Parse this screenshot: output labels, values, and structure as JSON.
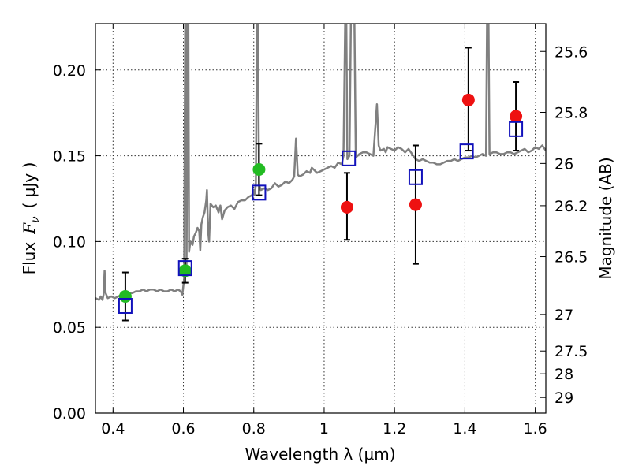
{
  "chart_data": {
    "type": "scatter",
    "title": "",
    "xlabel": "Wavelength  λ (μm)",
    "ylabel": "Flux  F_ν  ( μJy )",
    "ylabel_parts": {
      "prefix": "Flux",
      "symbol": "F",
      "subscript": "ν",
      "units": "( μJy )"
    },
    "y2label": "Magnitude (AB)",
    "xlim": [
      0.35,
      1.63
    ],
    "ylim": [
      0.0,
      0.227
    ],
    "grid": true,
    "xticks": [
      {
        "value": 0.4,
        "label": "0.4"
      },
      {
        "value": 0.6,
        "label": "0.6"
      },
      {
        "value": 0.8,
        "label": "0.8"
      },
      {
        "value": 1.0,
        "label": "1"
      },
      {
        "value": 1.2,
        "label": "1.2"
      },
      {
        "value": 1.4,
        "label": "1.4"
      },
      {
        "value": 1.6,
        "label": "1.6"
      }
    ],
    "yticks": [
      {
        "value": 0.0,
        "label": "0.00"
      },
      {
        "value": 0.05,
        "label": "0.05"
      },
      {
        "value": 0.1,
        "label": "0.10"
      },
      {
        "value": 0.15,
        "label": "0.15"
      },
      {
        "value": 0.2,
        "label": "0.20"
      }
    ],
    "y2ticks": [
      {
        "flux": 0.2108,
        "label": "25.6"
      },
      {
        "flux": 0.1753,
        "label": "25.8"
      },
      {
        "flux": 0.1455,
        "label": "26"
      },
      {
        "flux": 0.1209,
        "label": "26.2"
      },
      {
        "flux": 0.0912,
        "label": "26.5"
      },
      {
        "flux": 0.0575,
        "label": "27"
      },
      {
        "flux": 0.0362,
        "label": "27.5"
      },
      {
        "flux": 0.0229,
        "label": "28"
      },
      {
        "flux": 0.0091,
        "label": "29"
      }
    ],
    "spectrum": {
      "color": "#808080",
      "points": [
        [
          0.35,
          0.067
        ],
        [
          0.36,
          0.066
        ],
        [
          0.365,
          0.068
        ],
        [
          0.37,
          0.066
        ],
        [
          0.373,
          0.069
        ],
        [
          0.376,
          0.083
        ],
        [
          0.379,
          0.07
        ],
        [
          0.385,
          0.067
        ],
        [
          0.395,
          0.068
        ],
        [
          0.405,
          0.067
        ],
        [
          0.415,
          0.068
        ],
        [
          0.425,
          0.069
        ],
        [
          0.435,
          0.069
        ],
        [
          0.445,
          0.07
        ],
        [
          0.455,
          0.07
        ],
        [
          0.465,
          0.071
        ],
        [
          0.475,
          0.071
        ],
        [
          0.485,
          0.072
        ],
        [
          0.495,
          0.071
        ],
        [
          0.505,
          0.072
        ],
        [
          0.515,
          0.072
        ],
        [
          0.525,
          0.071
        ],
        [
          0.535,
          0.072
        ],
        [
          0.545,
          0.071
        ],
        [
          0.555,
          0.071
        ],
        [
          0.565,
          0.072
        ],
        [
          0.575,
          0.071
        ],
        [
          0.585,
          0.072
        ],
        [
          0.592,
          0.071
        ],
        [
          0.597,
          0.069
        ],
        [
          0.602,
          0.078
        ],
        [
          0.605,
          0.23
        ],
        [
          0.607,
          0.23
        ],
        [
          0.609,
          0.085
        ],
        [
          0.612,
          0.23
        ],
        [
          0.614,
          0.23
        ],
        [
          0.616,
          0.094
        ],
        [
          0.62,
          0.1
        ],
        [
          0.626,
          0.098
        ],
        [
          0.63,
          0.103
        ],
        [
          0.635,
          0.105
        ],
        [
          0.64,
          0.108
        ],
        [
          0.645,
          0.106
        ],
        [
          0.648,
          0.095
        ],
        [
          0.651,
          0.11
        ],
        [
          0.655,
          0.114
        ],
        [
          0.66,
          0.117
        ],
        [
          0.665,
          0.124
        ],
        [
          0.667,
          0.13
        ],
        [
          0.67,
          0.106
        ],
        [
          0.673,
          0.1
        ],
        [
          0.677,
          0.122
        ],
        [
          0.685,
          0.12
        ],
        [
          0.692,
          0.121
        ],
        [
          0.7,
          0.117
        ],
        [
          0.705,
          0.121
        ],
        [
          0.71,
          0.113
        ],
        [
          0.717,
          0.118
        ],
        [
          0.725,
          0.12
        ],
        [
          0.735,
          0.121
        ],
        [
          0.745,
          0.119
        ],
        [
          0.755,
          0.123
        ],
        [
          0.765,
          0.124
        ],
        [
          0.775,
          0.124
        ],
        [
          0.785,
          0.126
        ],
        [
          0.795,
          0.127
        ],
        [
          0.8,
          0.13
        ],
        [
          0.803,
          0.127
        ],
        [
          0.806,
          0.134
        ],
        [
          0.809,
          0.225
        ],
        [
          0.812,
          0.23
        ],
        [
          0.815,
          0.133
        ],
        [
          0.82,
          0.13
        ],
        [
          0.83,
          0.131
        ],
        [
          0.84,
          0.13
        ],
        [
          0.85,
          0.131
        ],
        [
          0.86,
          0.134
        ],
        [
          0.87,
          0.132
        ],
        [
          0.88,
          0.133
        ],
        [
          0.89,
          0.135
        ],
        [
          0.9,
          0.134
        ],
        [
          0.91,
          0.136
        ],
        [
          0.915,
          0.138
        ],
        [
          0.92,
          0.16
        ],
        [
          0.925,
          0.139
        ],
        [
          0.93,
          0.138
        ],
        [
          0.94,
          0.139
        ],
        [
          0.95,
          0.141
        ],
        [
          0.96,
          0.14
        ],
        [
          0.965,
          0.143
        ],
        [
          0.97,
          0.142
        ],
        [
          0.98,
          0.14
        ],
        [
          0.99,
          0.141
        ],
        [
          1.0,
          0.142
        ],
        [
          1.01,
          0.143
        ],
        [
          1.02,
          0.144
        ],
        [
          1.03,
          0.143
        ],
        [
          1.04,
          0.146
        ],
        [
          1.05,
          0.145
        ],
        [
          1.055,
          0.15
        ],
        [
          1.06,
          0.23
        ],
        [
          1.063,
          0.23
        ],
        [
          1.066,
          0.148
        ],
        [
          1.072,
          0.15
        ],
        [
          1.076,
          0.23
        ],
        [
          1.082,
          0.23
        ],
        [
          1.086,
          0.23
        ],
        [
          1.09,
          0.149
        ],
        [
          1.1,
          0.151
        ],
        [
          1.11,
          0.152
        ],
        [
          1.12,
          0.152
        ],
        [
          1.13,
          0.151
        ],
        [
          1.14,
          0.15
        ],
        [
          1.15,
          0.18
        ],
        [
          1.155,
          0.156
        ],
        [
          1.16,
          0.153
        ],
        [
          1.17,
          0.154
        ],
        [
          1.175,
          0.152
        ],
        [
          1.18,
          0.155
        ],
        [
          1.19,
          0.154
        ],
        [
          1.2,
          0.153
        ],
        [
          1.21,
          0.155
        ],
        [
          1.22,
          0.154
        ],
        [
          1.23,
          0.152
        ],
        [
          1.24,
          0.154
        ],
        [
          1.25,
          0.151
        ],
        [
          1.26,
          0.148
        ],
        [
          1.27,
          0.147
        ],
        [
          1.28,
          0.148
        ],
        [
          1.29,
          0.147
        ],
        [
          1.3,
          0.146
        ],
        [
          1.31,
          0.146
        ],
        [
          1.32,
          0.145
        ],
        [
          1.33,
          0.145
        ],
        [
          1.34,
          0.146
        ],
        [
          1.35,
          0.147
        ],
        [
          1.36,
          0.147
        ],
        [
          1.37,
          0.148
        ],
        [
          1.38,
          0.147
        ],
        [
          1.39,
          0.148
        ],
        [
          1.4,
          0.149
        ],
        [
          1.41,
          0.149
        ],
        [
          1.42,
          0.15
        ],
        [
          1.43,
          0.149
        ],
        [
          1.44,
          0.15
        ],
        [
          1.45,
          0.151
        ],
        [
          1.46,
          0.15
        ],
        [
          1.463,
          0.23
        ],
        [
          1.467,
          0.23
        ],
        [
          1.47,
          0.151
        ],
        [
          1.48,
          0.152
        ],
        [
          1.49,
          0.152
        ],
        [
          1.5,
          0.151
        ],
        [
          1.51,
          0.151
        ],
        [
          1.52,
          0.152
        ],
        [
          1.53,
          0.152
        ],
        [
          1.54,
          0.151
        ],
        [
          1.55,
          0.152
        ],
        [
          1.56,
          0.153
        ],
        [
          1.57,
          0.154
        ],
        [
          1.58,
          0.152
        ],
        [
          1.59,
          0.153
        ],
        [
          1.6,
          0.155
        ],
        [
          1.61,
          0.154
        ],
        [
          1.62,
          0.156
        ],
        [
          1.63,
          0.153
        ]
      ]
    },
    "series": [
      {
        "marker": "circle",
        "color": "#22bb22",
        "points": [
          {
            "x": 0.435,
            "y": 0.068,
            "err": [
              0.054,
              0.082
            ]
          },
          {
            "x": 0.605,
            "y": 0.083,
            "err": [
              0.076,
              0.09
            ]
          },
          {
            "x": 0.815,
            "y": 0.142,
            "err": [
              0.127,
              0.157
            ]
          }
        ]
      },
      {
        "marker": "circle",
        "color": "#ee1111",
        "points": [
          {
            "x": 1.065,
            "y": 0.12,
            "err": [
              0.101,
              0.14
            ]
          },
          {
            "x": 1.26,
            "y": 0.1215,
            "err": [
              0.087,
              0.156
            ]
          },
          {
            "x": 1.41,
            "y": 0.1825,
            "err": [
              0.153,
              0.213
            ]
          },
          {
            "x": 1.545,
            "y": 0.173,
            "err": [
              0.153,
              0.193
            ]
          }
        ]
      },
      {
        "marker": "square",
        "color": "#1111bb",
        "points": [
          {
            "x": 0.435,
            "y": 0.0625
          },
          {
            "x": 0.605,
            "y": 0.0845
          },
          {
            "x": 0.815,
            "y": 0.1285
          },
          {
            "x": 1.07,
            "y": 0.1485
          },
          {
            "x": 1.26,
            "y": 0.1375
          },
          {
            "x": 1.405,
            "y": 0.1525
          },
          {
            "x": 1.545,
            "y": 0.1655
          }
        ]
      }
    ]
  }
}
